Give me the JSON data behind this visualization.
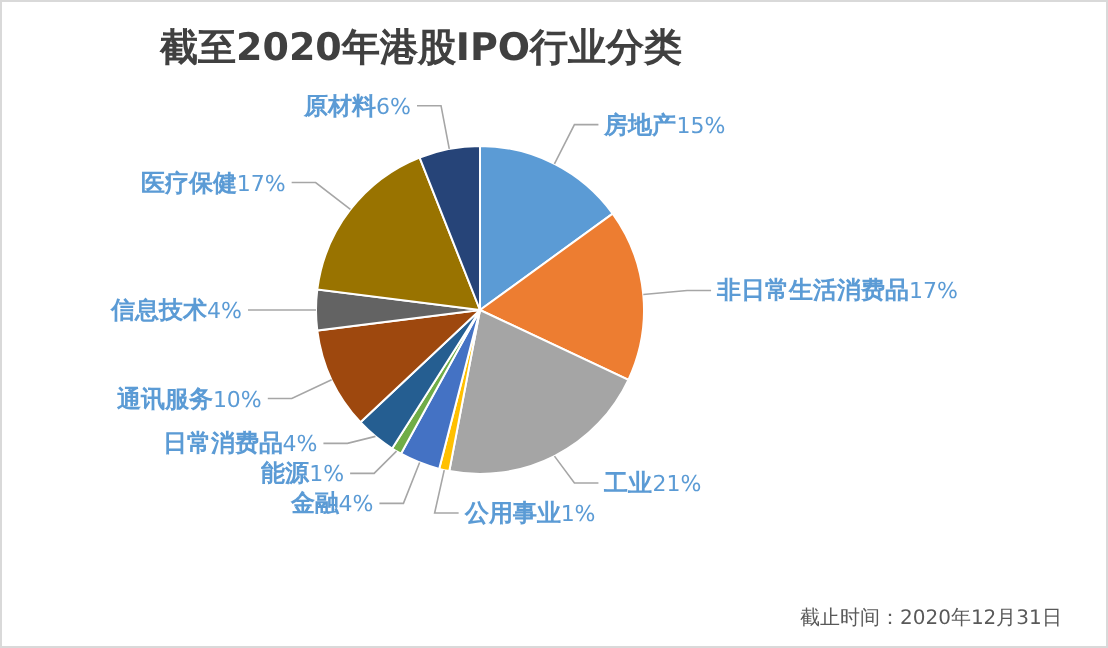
{
  "chart_data": {
    "type": "pie",
    "title": "截至2020年港股IPO行业分类",
    "categories": [
      "房地产",
      "非日常生活消费品",
      "工业",
      "公用事业",
      "金融",
      "能源",
      "日常消费品",
      "通讯服务",
      "信息技术",
      "医疗保健",
      "原材料"
    ],
    "values": [
      15,
      17,
      21,
      1,
      4,
      1,
      4,
      10,
      4,
      17,
      6
    ],
    "colors": [
      "#5b9bd5",
      "#ed7d31",
      "#a5a5a5",
      "#ffc000",
      "#4472c4",
      "#70ad47",
      "#255e91",
      "#9e480e",
      "#636363",
      "#997300",
      "#264478"
    ],
    "value_labels": [
      "15%",
      "17%",
      "21%",
      "1%",
      "4%",
      "1%",
      "4%",
      "10%",
      "4%",
      "17%",
      "6%"
    ],
    "annotations": [
      "截止时间：2020年12月31日"
    ]
  }
}
